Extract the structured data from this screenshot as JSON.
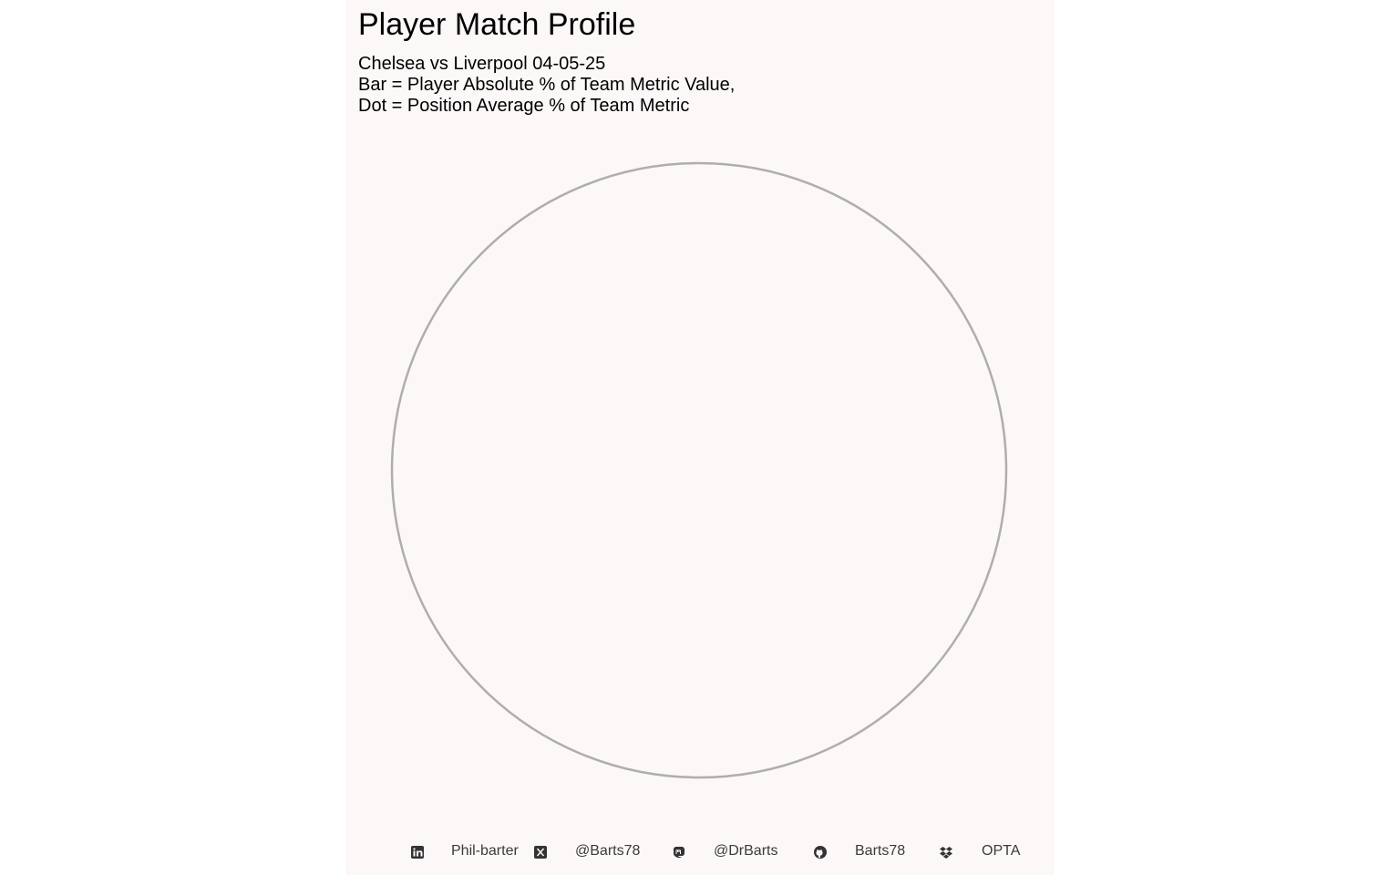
{
  "title": "Player Match Profile",
  "subtitle_lines": [
    "Chelsea vs Liverpool 04-05-25",
    "Bar = Player Absolute % of Team Metric Value,",
    "Dot = Position Average % of Team Metric"
  ],
  "chart_data": {
    "type": "bar",
    "coordinate_system": "polar",
    "title": "Player Match Profile",
    "categories": [],
    "series": [],
    "grid": false,
    "outline_color": "#b0adad"
  },
  "footer": {
    "items": [
      {
        "icon": "linkedin-icon",
        "label": "Phil-barter"
      },
      {
        "icon": "x-twitter-icon",
        "label": "@Barts78"
      },
      {
        "icon": "mastodon-icon",
        "label": "@DrBarts"
      },
      {
        "icon": "github-icon",
        "label": "Barts78"
      },
      {
        "icon": "dropbox-icon",
        "label": "OPTA"
      }
    ]
  },
  "colors": {
    "panel_background": "#fdf8f8",
    "text": "#000000",
    "footer_text": "#3a3a3a"
  }
}
